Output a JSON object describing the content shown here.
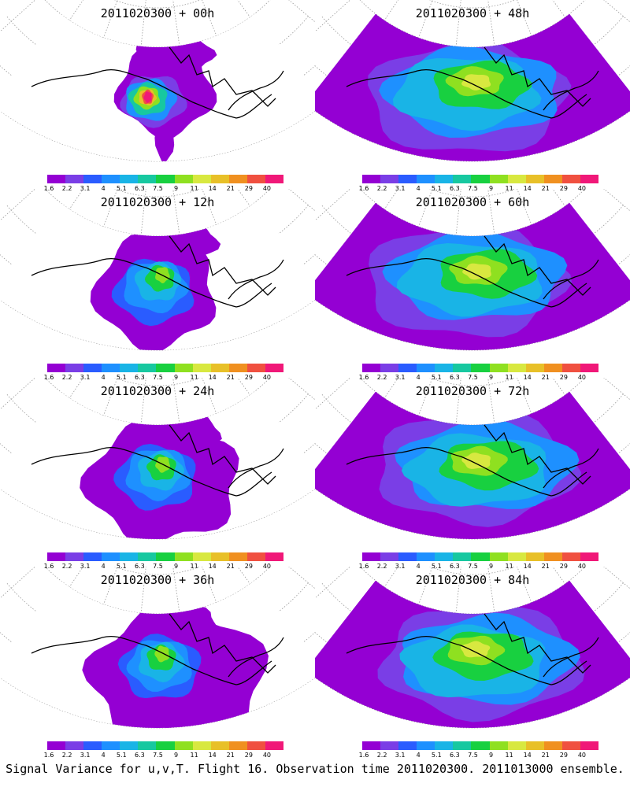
{
  "panels": [
    {
      "title": "2011020300 + 00h",
      "stage": 0
    },
    {
      "title": "2011020300 + 48h",
      "stage": 4
    },
    {
      "title": "2011020300 + 12h",
      "stage": 1
    },
    {
      "title": "2011020300 + 60h",
      "stage": 5
    },
    {
      "title": "2011020300 + 24h",
      "stage": 2
    },
    {
      "title": "2011020300 + 72h",
      "stage": 6
    },
    {
      "title": "2011020300 + 36h",
      "stage": 3
    },
    {
      "title": "2011020300 + 84h",
      "stage": 7
    }
  ],
  "colorbar": {
    "labels": [
      "1.6",
      "2.2",
      "3.1",
      "4",
      "5.1",
      "6.3",
      "7.5",
      "9",
      "11",
      "14",
      "21",
      "29",
      "40"
    ],
    "colors": [
      "#9400d3",
      "#7a3ee6",
      "#2a5cff",
      "#1e90ff",
      "#19b4e6",
      "#17c8a0",
      "#18d040",
      "#8fe020",
      "#d8e840",
      "#e8c028",
      "#f09020",
      "#f05040",
      "#f01878"
    ]
  },
  "caption": "Signal Variance for u,v,T. Flight 16. Observation time 2011020300. 2011013000 ensemble.",
  "chart_data": {
    "type": "heatmap",
    "title": "Signal Variance for u,v,T. Flight 16. Observation time 2011020300. 2011013000 ensemble.",
    "panels": [
      {
        "title": "2011020300 + 00h",
        "lead_hours": 0,
        "peak_level": "40"
      },
      {
        "title": "2011020300 + 12h",
        "lead_hours": 12,
        "peak_level": "9"
      },
      {
        "title": "2011020300 + 24h",
        "lead_hours": 24,
        "peak_level": "9"
      },
      {
        "title": "2011020300 + 36h",
        "lead_hours": 36,
        "peak_level": "9"
      },
      {
        "title": "2011020300 + 48h",
        "lead_hours": 48,
        "peak_level": "9"
      },
      {
        "title": "2011020300 + 60h",
        "lead_hours": 60,
        "peak_level": "9"
      },
      {
        "title": "2011020300 + 72h",
        "lead_hours": 72,
        "peak_level": "11"
      },
      {
        "title": "2011020300 + 84h",
        "lead_hours": 84,
        "peak_level": "11"
      }
    ],
    "colorbar_levels": [
      1.6,
      2.2,
      3.1,
      4,
      5.1,
      6.3,
      7.5,
      9,
      11,
      14,
      21,
      29,
      40
    ],
    "projection": "polar stereographic sector (Alaska / North Pacific)",
    "grid": true
  }
}
